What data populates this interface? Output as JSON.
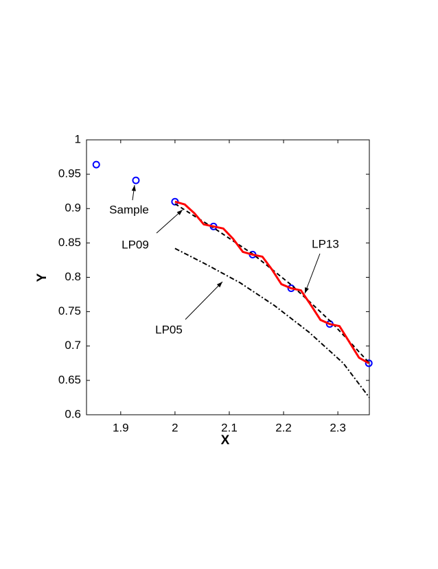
{
  "chart_data": {
    "type": "line",
    "xlabel": "X",
    "ylabel": "Y",
    "xlim": [
      1.837,
      2.358
    ],
    "ylim": [
      0.6,
      1
    ],
    "xticks": [
      1.9,
      2,
      2.1,
      2.2,
      2.3
    ],
    "yticks": [
      0.6,
      0.65,
      0.7,
      0.75,
      0.8,
      0.85,
      0.9,
      0.95,
      1
    ],
    "series": [
      {
        "name": "Sample",
        "color": "#0000ff",
        "linestyle": "none",
        "marker": "o",
        "x": [
          1.855,
          1.928,
          2.0,
          2.071,
          2.143,
          2.214,
          2.285,
          2.357
        ],
        "values": [
          0.964,
          0.941,
          0.91,
          0.874,
          0.833,
          0.784,
          0.732,
          0.675
        ]
      },
      {
        "name": "LP09",
        "color": "#000000",
        "linestyle": "--",
        "marker": "none",
        "x": [
          2.0,
          2.036,
          2.071,
          2.107,
          2.143,
          2.178,
          2.214,
          2.25,
          2.285,
          2.321,
          2.357
        ],
        "values": [
          0.907,
          0.889,
          0.872,
          0.853,
          0.834,
          0.812,
          0.789,
          0.763,
          0.737,
          0.707,
          0.676
        ]
      },
      {
        "name": "LP13",
        "color": "#ff0000",
        "linestyle": "-",
        "marker": "none",
        "x": [
          2.0,
          2.018,
          2.036,
          2.053,
          2.071,
          2.089,
          2.107,
          2.125,
          2.143,
          2.161,
          2.178,
          2.196,
          2.214,
          2.232,
          2.25,
          2.268,
          2.285,
          2.303,
          2.321,
          2.339,
          2.357
        ],
        "values": [
          0.91,
          0.906,
          0.893,
          0.877,
          0.874,
          0.871,
          0.856,
          0.837,
          0.833,
          0.83,
          0.812,
          0.79,
          0.784,
          0.781,
          0.76,
          0.738,
          0.732,
          0.729,
          0.706,
          0.683,
          0.675
        ]
      },
      {
        "name": "LP05",
        "color": "#000000",
        "linestyle": "-.",
        "marker": "none",
        "x": [
          2.0,
          2.057,
          2.12,
          2.183,
          2.247,
          2.31,
          2.358
        ],
        "values": [
          0.842,
          0.819,
          0.792,
          0.759,
          0.72,
          0.675,
          0.625
        ]
      }
    ]
  }
}
